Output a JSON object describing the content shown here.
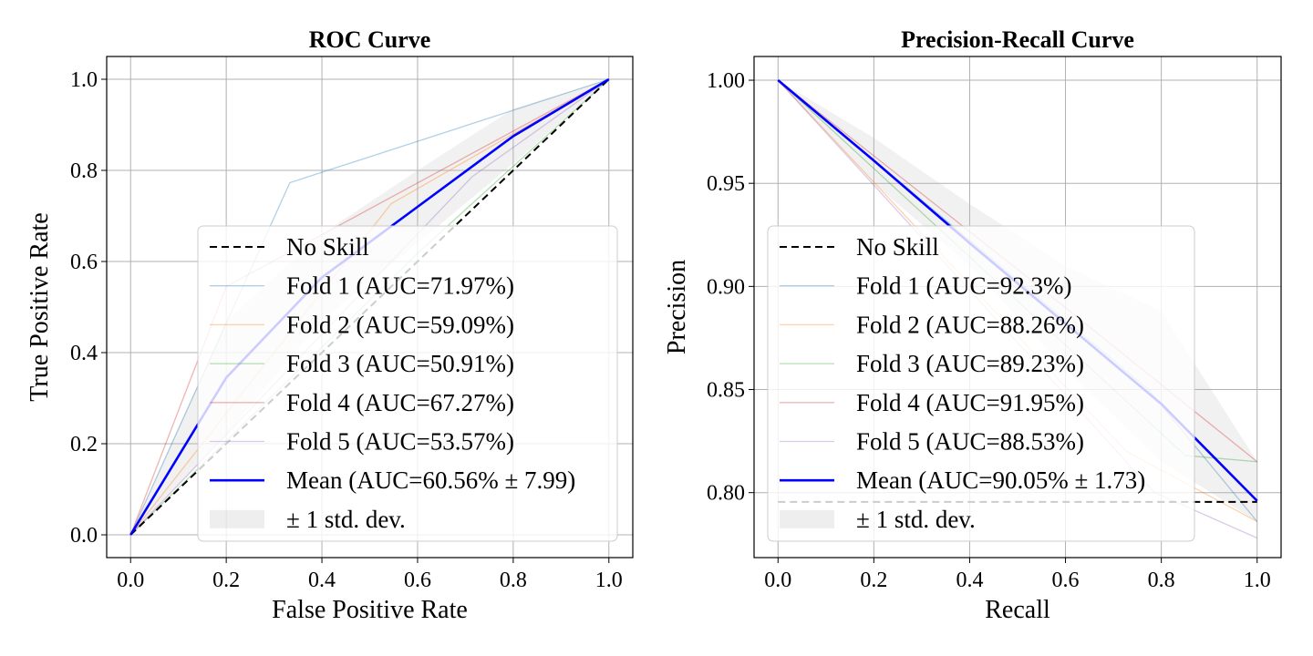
{
  "chart_data": [
    {
      "type": "line",
      "title": "ROC Curve",
      "xlabel": "False Positive Rate",
      "ylabel": "True Positive Rate",
      "xlim": [
        -0.05,
        1.05
      ],
      "ylim": [
        -0.05,
        1.05
      ],
      "xticks": [
        "0.0",
        "0.2",
        "0.4",
        "0.6",
        "0.8",
        "1.0"
      ],
      "yticks": [
        "0.0",
        "0.2",
        "0.4",
        "0.6",
        "0.8",
        "1.0"
      ],
      "grid": true,
      "legend_position": "lower-right",
      "no_skill": {
        "name": "No Skill",
        "x": [
          0,
          1
        ],
        "y": [
          0,
          1
        ],
        "color": "#000000",
        "dash": true
      },
      "series": [
        {
          "name": "Fold 1 (AUC=71.97%)",
          "color": "#1f77b4",
          "x": [
            0,
            0.333,
            1
          ],
          "y": [
            0,
            0.773,
            1
          ]
        },
        {
          "name": "Fold 2 (AUC=59.09%)",
          "color": "#ff7f0e",
          "x": [
            0,
            0.545,
            1
          ],
          "y": [
            0,
            0.727,
            1
          ]
        },
        {
          "name": "Fold 3 (AUC=50.91%)",
          "color": "#2ca02c",
          "x": [
            0,
            0.6,
            1
          ],
          "y": [
            0,
            0.618,
            1
          ]
        },
        {
          "name": "Fold 4 (AUC=67.27%)",
          "color": "#d62728",
          "x": [
            0,
            0.2,
            1
          ],
          "y": [
            0,
            0.545,
            1
          ]
        },
        {
          "name": "Fold 5 (AUC=53.57%)",
          "color": "#9467bd",
          "x": [
            0,
            0.714,
            1
          ],
          "y": [
            0,
            0.786,
            1
          ]
        }
      ],
      "mean": {
        "name": "Mean (AUC=60.56% ± 7.99)",
        "color": "#0000ff",
        "x": [
          0,
          0.2,
          0.4,
          0.6,
          0.8,
          1.0
        ],
        "y": [
          0,
          0.345,
          0.565,
          0.72,
          0.875,
          1.0
        ]
      },
      "std_band": {
        "name": "± 1 std. dev.",
        "color": "#bbbbbb",
        "x": [
          0,
          0.2,
          0.4,
          0.6,
          0.8,
          1.0
        ],
        "upper": [
          0,
          0.47,
          0.66,
          0.8,
          0.935,
          1.0
        ],
        "lower": [
          0,
          0.22,
          0.47,
          0.64,
          0.815,
          1.0
        ]
      }
    },
    {
      "type": "line",
      "title": "Precision-Recall Curve",
      "xlabel": "Recall",
      "ylabel": "Precision",
      "xlim": [
        -0.05,
        1.05
      ],
      "ylim": [
        0.7685,
        1.0115
      ],
      "xticks": [
        "0.0",
        "0.2",
        "0.4",
        "0.6",
        "0.8",
        "1.0"
      ],
      "yticks": [
        "0.80",
        "0.85",
        "0.90",
        "0.95",
        "1.00"
      ],
      "grid": true,
      "legend_position": "lower-left",
      "no_skill": {
        "name": "No Skill",
        "x": [
          0,
          1
        ],
        "y": [
          0.7955,
          0.7955
        ],
        "color": "#000000",
        "dash": true
      },
      "series": [
        {
          "name": "Fold 1 (AUC=92.3%)",
          "color": "#1f77b4",
          "x": [
            0,
            0.773,
            1
          ],
          "y": [
            1.0,
            0.85,
            0.786
          ]
        },
        {
          "name": "Fold 2 (AUC=88.26%)",
          "color": "#ff7f0e",
          "x": [
            0,
            0.727,
            1
          ],
          "y": [
            1.0,
            0.82,
            0.786
          ]
        },
        {
          "name": "Fold 3 (AUC=89.23%)",
          "color": "#2ca02c",
          "x": [
            0,
            0.85,
            1
          ],
          "y": [
            1.0,
            0.818,
            0.815
          ]
        },
        {
          "name": "Fold 4 (AUC=91.95%)",
          "color": "#d62728",
          "x": [
            0,
            0.545,
            1
          ],
          "y": [
            1.0,
            0.9,
            0.815
          ]
        },
        {
          "name": "Fold 5 (AUC=88.53%)",
          "color": "#9467bd",
          "x": [
            0,
            0.786,
            1
          ],
          "y": [
            1.0,
            0.8,
            0.778
          ]
        }
      ],
      "mean": {
        "name": "Mean (AUC=90.05%  ± 1.73)",
        "color": "#0000ff",
        "x": [
          0,
          0.2,
          0.4,
          0.6,
          0.8,
          1.0
        ],
        "y": [
          1.0,
          0.961,
          0.921,
          0.882,
          0.843,
          0.796
        ]
      },
      "std_band": {
        "name": "± 1 std. dev.",
        "color": "#bbbbbb",
        "x": [
          0,
          0.2,
          0.4,
          0.6,
          0.8,
          1.0
        ],
        "upper": [
          1.0,
          0.972,
          0.94,
          0.91,
          0.888,
          0.815
        ],
        "lower": [
          1.0,
          0.95,
          0.91,
          0.86,
          0.815,
          0.786
        ]
      }
    }
  ]
}
